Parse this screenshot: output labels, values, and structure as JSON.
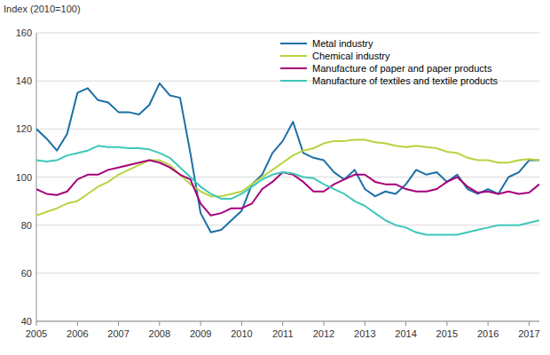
{
  "chart_data": {
    "type": "line",
    "y_label": "Index (2010=100)",
    "x": [
      2005,
      2005.25,
      2005.5,
      2005.75,
      2006,
      2006.25,
      2006.5,
      2006.75,
      2007,
      2007.25,
      2007.5,
      2007.75,
      2008,
      2008.25,
      2008.5,
      2008.75,
      2009,
      2009.25,
      2009.5,
      2009.75,
      2010,
      2010.25,
      2010.5,
      2010.75,
      2011,
      2011.25,
      2011.5,
      2011.75,
      2012,
      2012.25,
      2012.5,
      2012.75,
      2013,
      2013.25,
      2013.5,
      2013.75,
      2014,
      2014.25,
      2014.5,
      2014.75,
      2015,
      2015.25,
      2015.5,
      2015.75,
      2016,
      2016.25,
      2016.5,
      2016.75,
      2017,
      2017.25
    ],
    "series": [
      {
        "name": "Metal industry",
        "color": "#1c6fa6",
        "values": [
          120,
          116,
          111,
          118,
          135,
          137,
          132,
          131,
          127,
          127,
          126,
          130,
          139,
          134,
          133,
          110,
          85,
          77,
          78,
          82,
          86,
          97,
          101,
          110,
          115,
          123,
          110,
          108,
          107,
          102,
          99,
          103,
          95,
          92,
          94,
          93,
          97,
          103,
          101,
          102,
          98,
          101,
          95,
          93,
          95,
          93,
          100,
          102,
          107,
          107
        ]
      },
      {
        "name": "Chemical industry",
        "color": "#b6d43f",
        "values": [
          84,
          85.5,
          87,
          89,
          90,
          93,
          96,
          98,
          101,
          103,
          105,
          107,
          107,
          105,
          101,
          97,
          94,
          92,
          92,
          93,
          94,
          97,
          100,
          103,
          106,
          109,
          111,
          112,
          114,
          115,
          115,
          115.5,
          115.5,
          114.5,
          114,
          113,
          112.5,
          113,
          112.5,
          112,
          110.5,
          110,
          108,
          107,
          107,
          106,
          106,
          107,
          107.5,
          107
        ]
      },
      {
        "name": "Manufacture of paper and paper products",
        "color": "#a6007b",
        "values": [
          95,
          93,
          92.5,
          94,
          99,
          101,
          101,
          103,
          104,
          105,
          106,
          107,
          106,
          104,
          101,
          99,
          89,
          84,
          85,
          87,
          87,
          89,
          95,
          98,
          102,
          101,
          98,
          94,
          94,
          97,
          99,
          101,
          101,
          98,
          97,
          97,
          95,
          94,
          94,
          95,
          98,
          100,
          96,
          93.5,
          94,
          93,
          94,
          93,
          93.5,
          97
        ]
      },
      {
        "name": "Manufacture of textiles and textile products",
        "color": "#3ec7b8",
        "values": [
          107,
          106.5,
          107,
          109,
          110,
          111,
          113,
          112.5,
          112.5,
          112,
          112,
          111.5,
          110,
          108,
          104,
          100,
          96,
          93,
          91,
          91,
          93,
          96,
          99,
          101,
          102,
          101.5,
          100,
          99.5,
          97,
          95,
          93,
          90,
          88,
          85,
          82,
          80,
          79,
          77,
          76,
          76,
          76,
          76,
          77,
          78,
          79,
          80,
          80,
          80,
          81,
          82
        ]
      }
    ],
    "xlim": [
      2005,
      2017.25
    ],
    "xticks": [
      2005,
      2006,
      2007,
      2008,
      2009,
      2010,
      2011,
      2012,
      2013,
      2014,
      2015,
      2016,
      2017
    ],
    "ylim": [
      40,
      160
    ],
    "yticks": [
      40,
      60,
      80,
      100,
      120,
      140,
      160
    ],
    "grid": true,
    "legend": "upper right"
  }
}
